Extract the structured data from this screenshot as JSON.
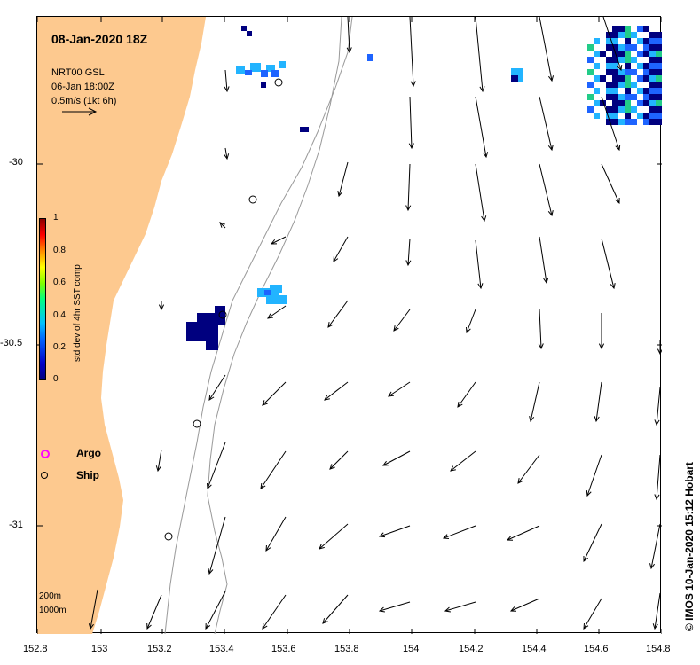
{
  "header": {
    "date": "08-Jan-2020 18Z",
    "source_line1": "NRT00 GSL",
    "source_line2": "06-Jan 18:00Z",
    "scale_text": "0.5m/s (1kt 6h)"
  },
  "axes": {
    "x_ticks": [
      "152.8",
      "153",
      "153.2",
      "153.4",
      "153.6",
      "153.8",
      "154",
      "154.2",
      "154.4",
      "154.6",
      "154.8"
    ],
    "y_ticks": [
      "-30",
      "-30.5",
      "-31"
    ]
  },
  "colorbar": {
    "title": "std dev of 4hr SST comp",
    "ticks": [
      "1",
      "0.8",
      "0.6",
      "0.4",
      "0.2",
      "0"
    ],
    "colors": [
      "#8b0000",
      "#ff0000",
      "#ff8c00",
      "#ffff00",
      "#7fff00",
      "#00ff7f",
      "#00bfff",
      "#0064ff",
      "#0000a0",
      "#00007f"
    ]
  },
  "key": {
    "argo_label": "Argo",
    "ship_label": "Ship",
    "argo_color": "#ff00ff"
  },
  "depth_labels": [
    "200m",
    "1000m"
  ],
  "credit": "© IMOS 10-Jan-2020 15:12 Hobart",
  "colors": {
    "land": "#fdc98f",
    "sst_dark": "#00007f",
    "sst_blue": "#1e64ff",
    "sst_cyan": "#22b4ff",
    "sst_green": "#22cc88"
  }
}
